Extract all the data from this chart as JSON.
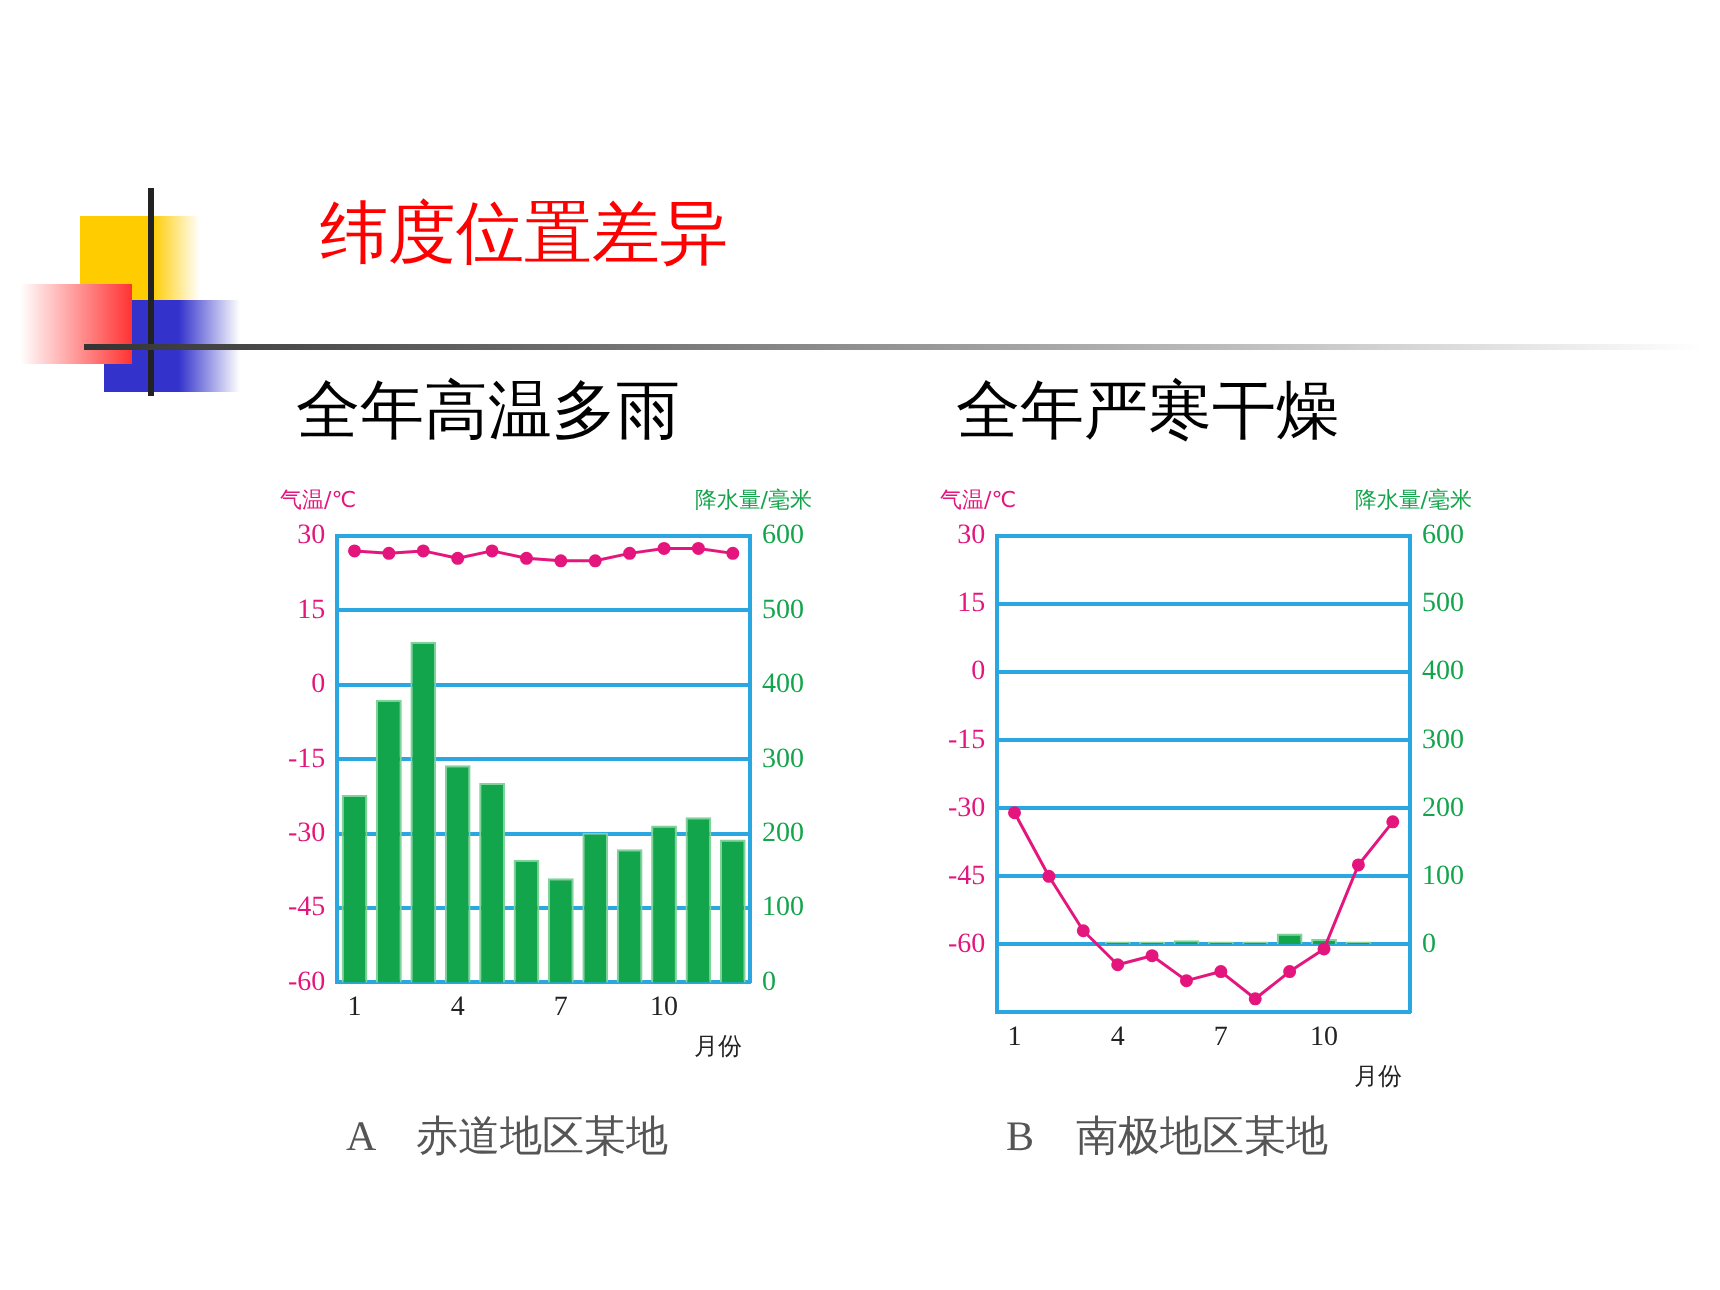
{
  "chart_data": [
    {
      "type": "bar",
      "title": "全年高温多雨",
      "annotations": [
        "纬度位置差异",
        "A　赤道地区某地"
      ],
      "xlabel": "月份",
      "ylabel": "气温/℃",
      "y2label": "降水量/毫米",
      "categories": [
        "1",
        null,
        null,
        "4",
        null,
        null,
        "7",
        null,
        null,
        "10",
        null,
        null
      ],
      "series": [
        {
          "axis": "y2",
          "color": "#13a54b",
          "values": [
            252,
            380,
            458,
            292,
            268,
            165,
            140,
            201,
            179,
            211,
            222,
            192
          ]
        },
        {
          "type": "line",
          "axis": "y",
          "color": "#e4157c",
          "values": [
            27,
            26.5,
            27,
            25.5,
            27,
            25.5,
            25,
            25,
            26.5,
            27.5,
            27.5,
            26.5
          ]
        }
      ],
      "ylim": [
        -60,
        30
      ],
      "yticks": [
        -60,
        -45,
        -30,
        -15,
        0,
        15,
        30
      ],
      "y2lim": [
        0,
        600
      ],
      "y2ticks": [
        0,
        100,
        200,
        300,
        400,
        500,
        600
      ],
      "grid": "y",
      "legend": false,
      "marker": "circle",
      "line_style": "solid"
    },
    {
      "type": "bar",
      "title": "全年严寒干燥",
      "annotations": [
        "B　南极地区某地"
      ],
      "xlabel": "月份",
      "ylabel": "气温/℃",
      "y2label": "降水量/毫米",
      "categories": [
        "1",
        null,
        null,
        "4",
        null,
        null,
        "7",
        null,
        null,
        "10",
        null,
        null
      ],
      "series": [
        {
          "axis": "y2",
          "color": "#13a54b",
          "values": [
            null,
            null,
            null,
            4,
            4,
            6,
            4,
            4,
            16,
            8,
            4,
            null
          ]
        },
        {
          "type": "line",
          "axis": "y",
          "color": "#e4157c",
          "values": [
            -31,
            -45,
            -57,
            -64.5,
            -62.5,
            -68,
            -66,
            -72,
            -66,
            -61,
            -42.5,
            -33
          ]
        }
      ],
      "ylim": [
        -75,
        30
      ],
      "yticks": [
        -60,
        -45,
        -30,
        -15,
        0,
        15,
        30
      ],
      "y2lim": [
        -100,
        600
      ],
      "y2ticks": [
        0,
        100,
        200,
        300,
        400,
        500,
        600
      ],
      "grid": "y",
      "legend": false,
      "marker": "circle",
      "line_style": "solid"
    }
  ]
}
